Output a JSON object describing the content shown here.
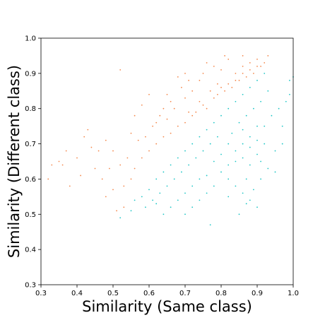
{
  "chart_data": {
    "type": "scatter",
    "title": "",
    "xlabel": "Similarity (Same class)",
    "ylabel": "Similarity (Different class)",
    "xlim": [
      0.3,
      1.0
    ],
    "ylim": [
      0.3,
      1.0
    ],
    "xticks": [
      "0.3",
      "0.4",
      "0.5",
      "0.6",
      "0.7",
      "0.8",
      "0.9",
      "1.0"
    ],
    "yticks": [
      "0.3",
      "0.4",
      "0.5",
      "0.6",
      "0.7",
      "0.8",
      "0.9",
      "1.0"
    ],
    "grid": false,
    "legend": "none",
    "point_size": "tiny",
    "series": [
      {
        "color": "#f4874b",
        "points": [
          [
            0.72,
            0.78
          ],
          [
            0.75,
            0.81
          ],
          [
            0.78,
            0.83
          ],
          [
            0.8,
            0.86
          ],
          [
            0.82,
            0.87
          ],
          [
            0.84,
            0.88
          ],
          [
            0.86,
            0.9
          ],
          [
            0.88,
            0.91
          ],
          [
            0.9,
            0.92
          ],
          [
            0.92,
            0.93
          ],
          [
            0.7,
            0.76
          ],
          [
            0.73,
            0.79
          ],
          [
            0.76,
            0.8
          ],
          [
            0.79,
            0.84
          ],
          [
            0.81,
            0.85
          ],
          [
            0.83,
            0.86
          ],
          [
            0.85,
            0.88
          ],
          [
            0.87,
            0.89
          ],
          [
            0.89,
            0.9
          ],
          [
            0.91,
            0.92
          ],
          [
            0.66,
            0.73
          ],
          [
            0.68,
            0.75
          ],
          [
            0.71,
            0.79
          ],
          [
            0.74,
            0.82
          ],
          [
            0.77,
            0.85
          ],
          [
            0.79,
            0.87
          ],
          [
            0.65,
            0.77
          ],
          [
            0.67,
            0.8
          ],
          [
            0.7,
            0.83
          ],
          [
            0.72,
            0.85
          ],
          [
            0.62,
            0.7
          ],
          [
            0.64,
            0.72
          ],
          [
            0.6,
            0.68
          ],
          [
            0.58,
            0.66
          ],
          [
            0.56,
            0.63
          ],
          [
            0.55,
            0.6
          ],
          [
            0.53,
            0.58
          ],
          [
            0.5,
            0.57
          ],
          [
            0.48,
            0.55
          ],
          [
            0.45,
            0.63
          ],
          [
            0.42,
            0.72
          ],
          [
            0.4,
            0.66
          ],
          [
            0.38,
            0.58
          ],
          [
            0.35,
            0.65
          ],
          [
            0.33,
            0.64
          ],
          [
            0.32,
            0.6
          ],
          [
            0.46,
            0.68
          ],
          [
            0.52,
            0.64
          ],
          [
            0.57,
            0.71
          ],
          [
            0.61,
            0.75
          ],
          [
            0.63,
            0.78
          ],
          [
            0.66,
            0.82
          ],
          [
            0.69,
            0.86
          ],
          [
            0.71,
            0.88
          ],
          [
            0.75,
            0.9
          ],
          [
            0.78,
            0.92
          ],
          [
            0.82,
            0.94
          ],
          [
            0.86,
            0.95
          ],
          [
            0.52,
            0.91
          ],
          [
            0.6,
            0.84
          ],
          [
            0.55,
            0.73
          ],
          [
            0.5,
            0.68
          ],
          [
            0.47,
            0.6
          ],
          [
            0.44,
            0.69
          ],
          [
            0.58,
            0.81
          ],
          [
            0.68,
            0.89
          ],
          [
            0.74,
            0.88
          ],
          [
            0.8,
            0.91
          ],
          [
            0.84,
            0.9
          ],
          [
            0.88,
            0.93
          ],
          [
            0.64,
            0.8
          ],
          [
            0.62,
            0.76
          ],
          [
            0.59,
            0.72
          ],
          [
            0.54,
            0.66
          ],
          [
            0.49,
            0.63
          ],
          [
            0.41,
            0.61
          ],
          [
            0.37,
            0.68
          ],
          [
            0.36,
            0.64
          ],
          [
            0.51,
            0.51
          ],
          [
            0.53,
            0.52
          ],
          [
            0.43,
            0.74
          ],
          [
            0.48,
            0.71
          ],
          [
            0.56,
            0.78
          ],
          [
            0.65,
            0.84
          ],
          [
            0.7,
            0.9
          ],
          [
            0.76,
            0.93
          ],
          [
            0.81,
            0.95
          ],
          [
            0.86,
            0.92
          ],
          [
            0.9,
            0.94
          ],
          [
            0.93,
            0.95
          ]
        ]
      },
      {
        "color": "#1ec6c6",
        "points": [
          [
            0.8,
            0.78
          ],
          [
            0.82,
            0.8
          ],
          [
            0.84,
            0.82
          ],
          [
            0.86,
            0.84
          ],
          [
            0.88,
            0.86
          ],
          [
            0.9,
            0.88
          ],
          [
            0.92,
            0.9
          ],
          [
            0.85,
            0.76
          ],
          [
            0.87,
            0.78
          ],
          [
            0.89,
            0.8
          ],
          [
            0.91,
            0.82
          ],
          [
            0.93,
            0.85
          ],
          [
            0.83,
            0.73
          ],
          [
            0.86,
            0.74
          ],
          [
            0.88,
            0.72
          ],
          [
            0.9,
            0.75
          ],
          [
            0.82,
            0.7
          ],
          [
            0.84,
            0.68
          ],
          [
            0.86,
            0.66
          ],
          [
            0.88,
            0.64
          ],
          [
            0.9,
            0.67
          ],
          [
            0.92,
            0.7
          ],
          [
            0.79,
            0.72
          ],
          [
            0.77,
            0.7
          ],
          [
            0.75,
            0.68
          ],
          [
            0.73,
            0.66
          ],
          [
            0.71,
            0.64
          ],
          [
            0.69,
            0.62
          ],
          [
            0.67,
            0.6
          ],
          [
            0.65,
            0.58
          ],
          [
            0.63,
            0.56
          ],
          [
            0.61,
            0.54
          ],
          [
            0.59,
            0.52
          ],
          [
            0.76,
            0.74
          ],
          [
            0.78,
            0.76
          ],
          [
            0.74,
            0.72
          ],
          [
            0.72,
            0.7
          ],
          [
            0.7,
            0.68
          ],
          [
            0.68,
            0.66
          ],
          [
            0.66,
            0.64
          ],
          [
            0.64,
            0.62
          ],
          [
            0.62,
            0.6
          ],
          [
            0.8,
            0.62
          ],
          [
            0.82,
            0.6
          ],
          [
            0.84,
            0.58
          ],
          [
            0.86,
            0.56
          ],
          [
            0.88,
            0.54
          ],
          [
            0.9,
            0.52
          ],
          [
            0.78,
            0.58
          ],
          [
            0.76,
            0.56
          ],
          [
            0.74,
            0.54
          ],
          [
            0.72,
            0.52
          ],
          [
            0.7,
            0.5
          ],
          [
            0.85,
            0.5
          ],
          [
            0.87,
            0.53
          ],
          [
            0.89,
            0.57
          ],
          [
            0.91,
            0.6
          ],
          [
            0.93,
            0.63
          ],
          [
            0.95,
            0.68
          ],
          [
            0.97,
            0.75
          ],
          [
            0.98,
            0.82
          ],
          [
            0.99,
            0.88
          ],
          [
            1.0,
            0.89
          ],
          [
            0.96,
            0.8
          ],
          [
            0.94,
            0.78
          ],
          [
            0.92,
            0.75
          ],
          [
            0.9,
            0.71
          ],
          [
            0.88,
            0.69
          ],
          [
            0.86,
            0.7
          ],
          [
            0.84,
            0.65
          ],
          [
            0.82,
            0.64
          ],
          [
            0.8,
            0.67
          ],
          [
            0.78,
            0.65
          ],
          [
            0.76,
            0.61
          ],
          [
            0.74,
            0.6
          ],
          [
            0.72,
            0.58
          ],
          [
            0.7,
            0.56
          ],
          [
            0.68,
            0.54
          ],
          [
            0.66,
            0.52
          ],
          [
            0.64,
            0.5
          ],
          [
            0.62,
            0.53
          ],
          [
            0.6,
            0.57
          ],
          [
            0.58,
            0.55
          ],
          [
            0.56,
            0.54
          ],
          [
            0.55,
            0.51
          ],
          [
            0.52,
            0.49
          ],
          [
            0.77,
            0.47
          ],
          [
            0.82,
            0.55
          ],
          [
            0.87,
            0.6
          ],
          [
            0.91,
            0.65
          ],
          [
            0.95,
            0.62
          ],
          [
            0.99,
            0.84
          ],
          [
            0.97,
            0.7
          ]
        ]
      }
    ]
  }
}
